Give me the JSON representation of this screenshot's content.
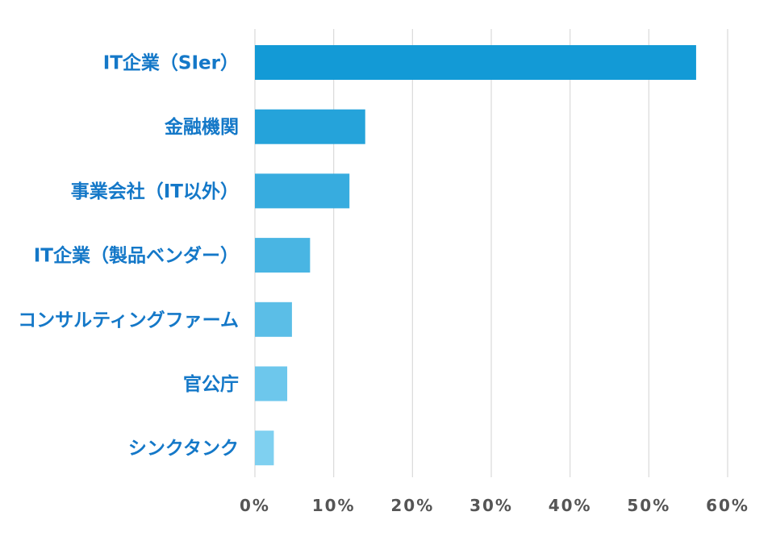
{
  "chart_data": {
    "type": "bar",
    "orientation": "horizontal",
    "categories": [
      "IT企業（SIer）",
      "金融機関",
      "事業会社（IT以外）",
      "IT企業（製品ベンダー）",
      "コンサルティングファーム",
      "官公庁",
      "シンクタンク"
    ],
    "values": [
      0.56,
      0.14,
      0.12,
      0.07,
      0.047,
      0.041,
      0.024
    ],
    "xlim": [
      0,
      0.6
    ],
    "x_ticks": [
      0,
      0.1,
      0.2,
      0.3,
      0.4,
      0.5,
      0.6
    ],
    "x_tick_labels": [
      "0%",
      "10%",
      "20%",
      "30%",
      "40%",
      "50%",
      "60%"
    ],
    "title": "",
    "xlabel": "",
    "ylabel": "",
    "grid": "vertical",
    "legend": "none"
  },
  "colors": {
    "label_text": "#1478c8",
    "tick_text": "#555555",
    "grid": "#d9d9d9",
    "bar_gradient_top": "#139ad6",
    "bar_gradient_bottom": "#7fd0f0"
  }
}
